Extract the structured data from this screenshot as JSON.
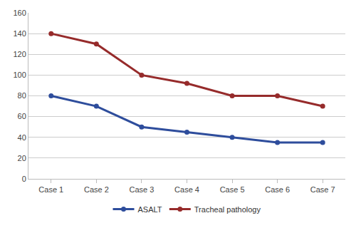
{
  "chart_data": {
    "type": "line",
    "categories": [
      "Case 1",
      "Case 2",
      "Case 3",
      "Case 4",
      "Case 5",
      "Case 6",
      "Case 7"
    ],
    "series": [
      {
        "name": "ASALT",
        "color": "#2e4d9c",
        "values": [
          80,
          70,
          50,
          45,
          40,
          35,
          35
        ]
      },
      {
        "name": "Tracheal pathology",
        "color": "#962b2b",
        "values": [
          140,
          130,
          100,
          92,
          80,
          80,
          70
        ]
      }
    ],
    "ylim": [
      0,
      160
    ],
    "yticks": [
      0,
      20,
      40,
      60,
      80,
      100,
      120,
      140,
      160
    ],
    "grid": true,
    "legend": "bottom",
    "marker": "circle"
  }
}
